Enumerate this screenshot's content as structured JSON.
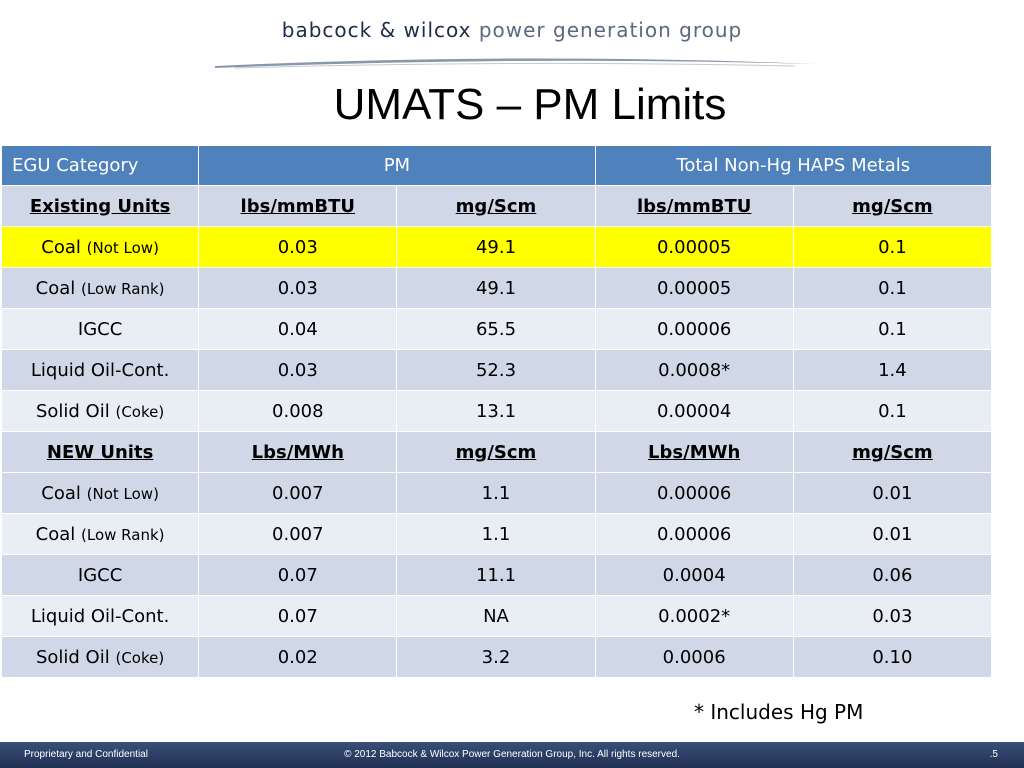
{
  "header": {
    "logo_main": "babcock & wilcox",
    "logo_sub": "power generation group",
    "title": "UMATS – PM Limits"
  },
  "table": {
    "columns": {
      "category": "EGU Category",
      "pm": "PM",
      "metals": "Total Non-Hg HAPS Metals"
    },
    "sections": [
      {
        "label": "Existing Units",
        "units": [
          "lbs/mmBTU",
          "mg/Scm",
          "lbs/mmBTU",
          "mg/Scm"
        ],
        "rows": [
          {
            "name": "Coal",
            "qualifier": "(Not Low)",
            "values": [
              "0.03",
              "49.1",
              "0.00005",
              "0.1"
            ]
          },
          {
            "name": "Coal",
            "qualifier": "(Low Rank)",
            "values": [
              "0.03",
              "49.1",
              "0.00005",
              "0.1"
            ]
          },
          {
            "name": "IGCC",
            "qualifier": "",
            "values": [
              "0.04",
              "65.5",
              "0.00006",
              "0.1"
            ]
          },
          {
            "name": "Liquid Oil-Cont.",
            "qualifier": "",
            "values": [
              "0.03",
              "52.3",
              "0.0008*",
              "1.4"
            ]
          },
          {
            "name": "Solid Oil",
            "qualifier": "(Coke)",
            "values": [
              "0.008",
              "13.1",
              "0.00004",
              "0.1"
            ]
          }
        ]
      },
      {
        "label": "NEW Units",
        "units": [
          "Lbs/MWh",
          "mg/Scm",
          "Lbs/MWh",
          "mg/Scm"
        ],
        "rows": [
          {
            "name": "Coal",
            "qualifier": "(Not Low)",
            "values": [
              "0.007",
              "1.1",
              "0.00006",
              "0.01"
            ]
          },
          {
            "name": "Coal",
            "qualifier": "(Low Rank)",
            "values": [
              "0.007",
              "1.1",
              "0.00006",
              "0.01"
            ]
          },
          {
            "name": "IGCC",
            "qualifier": "",
            "values": [
              "0.07",
              "11.1",
              "0.0004",
              "0.06"
            ]
          },
          {
            "name": "Liquid Oil-Cont.",
            "qualifier": "",
            "values": [
              "0.07",
              "NA",
              "0.0002*",
              "0.03"
            ]
          },
          {
            "name": "Solid Oil",
            "qualifier": "(Coke)",
            "values": [
              "0.02",
              "3.2",
              "0.0006",
              "0.10"
            ]
          }
        ]
      }
    ],
    "highlight_color": "#ffff00",
    "header_color": "#4f81bd"
  },
  "footnote": "* Includes Hg PM",
  "footer": {
    "left": "Proprietary and Confidential",
    "center": "© 2012 Babcock & Wilcox Power Generation Group, Inc. All rights reserved.",
    "page": ".5"
  }
}
